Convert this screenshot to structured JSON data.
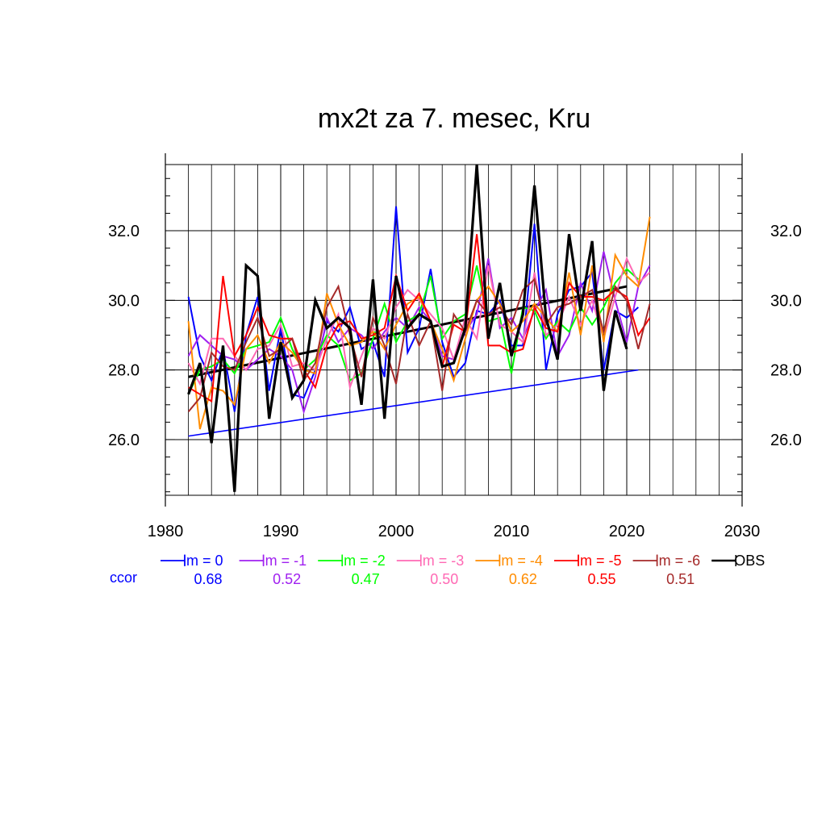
{
  "chart_data": {
    "type": "line",
    "title": "mx2t za 7. mesec, Kru",
    "xlabel": "",
    "ylabel": "",
    "xlim": [
      1980,
      2030
    ],
    "ylim": [
      24.4,
      33.9
    ],
    "x_ticks": [
      1980,
      1990,
      2000,
      2010,
      2020,
      2030
    ],
    "x_tick_labels": [
      "1980",
      "1990",
      "2000",
      "2010",
      "2020",
      "2030"
    ],
    "y_ticks": [
      26,
      28,
      30,
      32
    ],
    "y_tick_labels": [
      "26.0",
      "28.0",
      "30.0",
      "32.0"
    ],
    "grid": true,
    "legend_position": "bottom",
    "ccor_label": "ccor",
    "ccor_color": "#0000ff",
    "series": [
      {
        "name": "lm = 0",
        "color": "#0000ff",
        "ccor": "0.68",
        "x_start": 1982,
        "values": [
          30.1,
          28.4,
          27.7,
          28.6,
          26.8,
          29.0,
          30.1,
          27.4,
          29.2,
          27.3,
          27.2,
          28.0,
          29.4,
          29.1,
          29.8,
          28.6,
          28.8,
          27.8,
          32.7,
          28.5,
          29.2,
          30.9,
          28.8,
          27.8,
          28.2,
          29.7,
          29.6,
          30.0,
          28.7,
          28.7,
          32.2,
          28.0,
          29.6,
          30.3,
          30.4,
          30.8,
          28.0,
          29.7,
          29.5,
          29.8
        ]
      },
      {
        "name": "lm = -1",
        "color": "#a020f0",
        "ccor": "0.52",
        "x_start": 1982,
        "values": [
          28.4,
          29.0,
          28.7,
          28.4,
          28.3,
          28.0,
          28.3,
          28.6,
          28.4,
          28.0,
          26.8,
          27.8,
          29.5,
          28.8,
          29.2,
          29.0,
          28.6,
          29.1,
          29.5,
          29.2,
          29.8,
          29.4,
          28.4,
          28.3,
          29.1,
          29.6,
          31.2,
          29.2,
          29.5,
          28.9,
          29.7,
          30.3,
          28.4,
          29.0,
          30.5,
          29.7,
          31.4,
          30.0,
          28.8,
          30.4,
          31.0
        ]
      },
      {
        "name": "lm = -2",
        "color": "#00ff00",
        "ccor": "0.47",
        "x_start": 1982,
        "values": [
          27.3,
          28.0,
          28.1,
          28.3,
          27.9,
          28.6,
          28.7,
          28.8,
          29.5,
          28.6,
          28.0,
          28.3,
          29.0,
          28.7,
          27.7,
          27.9,
          28.9,
          29.9,
          28.8,
          29.4,
          29.6,
          30.7,
          28.9,
          29.4,
          29.6,
          31.0,
          29.4,
          29.5,
          27.9,
          29.8,
          29.7,
          28.9,
          29.4,
          29.1,
          29.8,
          29.3,
          29.8,
          30.5,
          30.9,
          30.6
        ]
      },
      {
        "name": "lm = -3",
        "color": "#ff69b4",
        "ccor": "0.50",
        "x_start": 1982,
        "values": [
          28.2,
          27.6,
          28.9,
          28.9,
          28.4,
          28.0,
          28.6,
          28.7,
          29.3,
          28.1,
          28.2,
          28.0,
          28.9,
          29.6,
          27.5,
          28.4,
          29.2,
          28.9,
          29.8,
          30.3,
          30.0,
          29.6,
          29.2,
          28.3,
          29.5,
          28.9,
          31.0,
          29.3,
          29.1,
          28.8,
          30.8,
          29.0,
          29.3,
          30.1,
          29.3,
          30.0,
          28.9,
          30.1,
          31.2,
          30.5,
          30.8
        ]
      },
      {
        "name": "lm = -4",
        "color": "#ff8c00",
        "ccor": "0.62",
        "x_start": 1982,
        "values": [
          29.4,
          26.3,
          27.5,
          27.4,
          27.0,
          28.6,
          29.0,
          28.2,
          28.8,
          28.5,
          28.0,
          27.9,
          30.2,
          29.3,
          28.7,
          28.8,
          29.1,
          28.6,
          29.3,
          29.9,
          30.1,
          29.4,
          28.6,
          27.7,
          28.9,
          30.0,
          30.4,
          29.9,
          29.1,
          29.4,
          29.9,
          29.5,
          29.1,
          30.8,
          29.0,
          31.0,
          28.8,
          31.3,
          30.7,
          30.4,
          32.4
        ]
      },
      {
        "name": "lm = -5",
        "color": "#ff0000",
        "ccor": "0.55",
        "x_start": 1982,
        "values": [
          27.5,
          27.3,
          27.1,
          30.7,
          28.4,
          29.0,
          29.8,
          29.0,
          28.9,
          28.9,
          28.0,
          27.5,
          28.7,
          29.3,
          29.4,
          28.9,
          29.0,
          29.2,
          30.7,
          29.7,
          30.2,
          29.4,
          28.1,
          29.3,
          29.1,
          31.9,
          28.7,
          28.7,
          28.5,
          28.6,
          29.8,
          29.2,
          29.1,
          30.5,
          30.1,
          30.1,
          30.0,
          30.3,
          30.1,
          29.0,
          29.5
        ]
      },
      {
        "name": "lm = -6",
        "color": "#a52a2a",
        "ccor": "0.51",
        "x_start": 1982,
        "values": [
          26.8,
          27.2,
          28.5,
          28.1,
          28.0,
          28.8,
          29.5,
          28.4,
          28.6,
          28.9,
          27.7,
          28.2,
          29.8,
          30.4,
          29.0,
          27.8,
          29.5,
          28.7,
          27.6,
          29.6,
          28.7,
          29.4,
          27.4,
          29.6,
          29.1,
          30.0,
          29.6,
          29.8,
          29.3,
          30.3,
          30.6,
          29.3,
          29.8,
          29.9,
          30.1,
          30.3,
          29.1,
          30.4,
          30.0,
          28.6,
          29.9
        ]
      },
      {
        "name": "OBS",
        "color": "#000000",
        "ccor": "",
        "x_start": 1982,
        "values": [
          27.3,
          28.2,
          25.9,
          28.7,
          24.5,
          31.0,
          30.7,
          26.6,
          28.8,
          27.2,
          27.7,
          30.0,
          29.2,
          29.5,
          29.2,
          27.0,
          30.6,
          26.6,
          30.7,
          29.2,
          29.6,
          29.4,
          28.1,
          28.2,
          29.2,
          33.9,
          28.9,
          30.5,
          28.4,
          29.6,
          33.3,
          29.5,
          28.3,
          31.9,
          29.7,
          31.7,
          27.4,
          29.7,
          28.6
        ]
      }
    ],
    "trend_lines": [
      {
        "name": "lm = 0 trend",
        "color": "#0000ff",
        "x": [
          1982,
          2021
        ],
        "y": [
          26.1,
          28.0
        ]
      },
      {
        "name": "OBS trend",
        "color": "#000000",
        "x": [
          1982,
          2020
        ],
        "y": [
          27.8,
          30.4
        ]
      }
    ]
  }
}
